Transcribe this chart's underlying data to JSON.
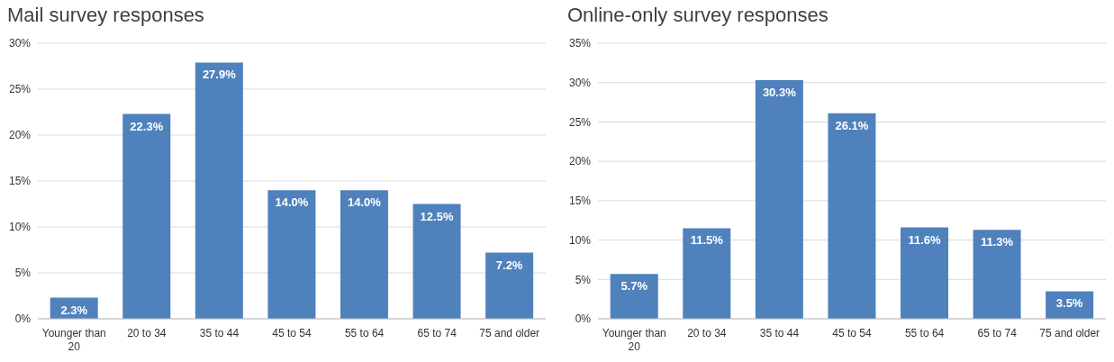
{
  "chart_data": [
    {
      "type": "bar",
      "title": "Mail survey responses",
      "categories": [
        "Younger than 20",
        "20 to 34",
        "35 to 44",
        "45 to 54",
        "55 to 64",
        "65 to 74",
        "75 and older"
      ],
      "values": [
        2.3,
        22.3,
        27.9,
        14.0,
        14.0,
        12.5,
        7.2
      ],
      "value_labels": [
        "2.3%",
        "22.3%",
        "27.9%",
        "14.0%",
        "14.0%",
        "12.5%",
        "7.2%"
      ],
      "color": "#4f81bd",
      "ylim": [
        0,
        30
      ],
      "yticks": [
        {
          "value": 0,
          "label": "0%"
        },
        {
          "value": 5,
          "label": "5%"
        },
        {
          "value": 10,
          "label": "10%"
        },
        {
          "value": 15,
          "label": "15%"
        },
        {
          "value": 20,
          "label": "20%"
        },
        {
          "value": 25,
          "label": "25%"
        },
        {
          "value": 30,
          "label": "30%"
        }
      ],
      "grid": "y"
    },
    {
      "type": "bar",
      "title": "Online-only survey responses",
      "categories": [
        "Younger than 20",
        "20 to 34",
        "35 to 44",
        "45 to 54",
        "55 to 64",
        "65 to 74",
        "75 and older"
      ],
      "values": [
        5.7,
        11.5,
        30.3,
        26.1,
        11.6,
        11.3,
        3.5
      ],
      "value_labels": [
        "5.7%",
        "11.5%",
        "30.3%",
        "26.1%",
        "11.6%",
        "11.3%",
        "3.5%"
      ],
      "color": "#4f81bd",
      "ylim": [
        0,
        35
      ],
      "yticks": [
        {
          "value": 0,
          "label": "0%"
        },
        {
          "value": 5,
          "label": "5%"
        },
        {
          "value": 10,
          "label": "10%"
        },
        {
          "value": 15,
          "label": "15%"
        },
        {
          "value": 20,
          "label": "20%"
        },
        {
          "value": 25,
          "label": "25%"
        },
        {
          "value": 30,
          "label": "30%"
        },
        {
          "value": 35,
          "label": "35%"
        }
      ],
      "grid": "y"
    }
  ]
}
